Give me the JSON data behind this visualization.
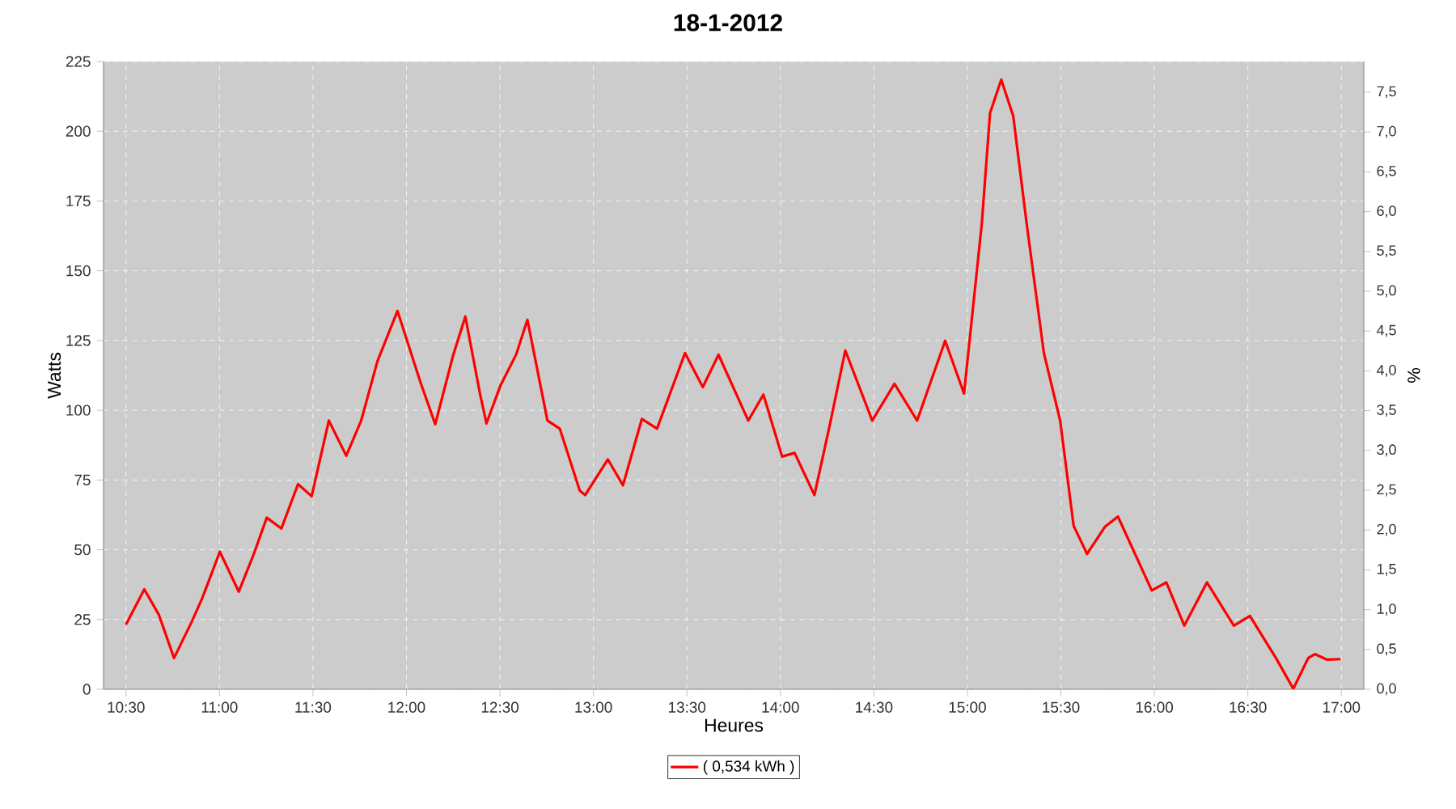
{
  "chart_data": {
    "type": "line",
    "title": "18-1-2012",
    "xlabel": "Heures",
    "ylabel": "Watts",
    "y2label": "%",
    "xlim": [
      10.38,
      17.12
    ],
    "xticks": [
      {
        "value": 10.5,
        "label": "10:30"
      },
      {
        "value": 11,
        "label": "11:00"
      },
      {
        "value": 11.5,
        "label": "11:30"
      },
      {
        "value": 12,
        "label": "12:00"
      },
      {
        "value": 12.5,
        "label": "12:30"
      },
      {
        "value": 13,
        "label": "13:00"
      },
      {
        "value": 13.5,
        "label": "13:30"
      },
      {
        "value": 14,
        "label": "14:00"
      },
      {
        "value": 14.5,
        "label": "14:30"
      },
      {
        "value": 15,
        "label": "15:00"
      },
      {
        "value": 15.5,
        "label": "15:30"
      },
      {
        "value": 16,
        "label": "16:00"
      },
      {
        "value": 16.5,
        "label": "16:30"
      },
      {
        "value": 17,
        "label": "17:00"
      }
    ],
    "ylim": [
      0,
      225
    ],
    "yticks": [
      0,
      25,
      50,
      75,
      100,
      125,
      150,
      175,
      200,
      225
    ],
    "y2lim": [
      0,
      7.886
    ],
    "y2ticks": [
      {
        "value": 0,
        "label": "0,0"
      },
      {
        "value": 0.5,
        "label": "0,5"
      },
      {
        "value": 1,
        "label": "1,0"
      },
      {
        "value": 1.5,
        "label": "1,5"
      },
      {
        "value": 2,
        "label": "2,0"
      },
      {
        "value": 2.5,
        "label": "2,5"
      },
      {
        "value": 3,
        "label": "3,0"
      },
      {
        "value": 3.5,
        "label": "3,5"
      },
      {
        "value": 4,
        "label": "4,0"
      },
      {
        "value": 4.5,
        "label": "4,5"
      },
      {
        "value": 5,
        "label": "5,0"
      },
      {
        "value": 5.5,
        "label": "5,5"
      },
      {
        "value": 6,
        "label": "6,0"
      },
      {
        "value": 6.5,
        "label": "6,5"
      },
      {
        "value": 7,
        "label": "7,0"
      },
      {
        "value": 7.5,
        "label": "7,5"
      }
    ],
    "grid": true,
    "legend": "bottom",
    "marker": "none",
    "line_style": "solid",
    "series": [
      {
        "name": "( 0,534 kWh )",
        "color": "#ff0000",
        "x": [
          10.5,
          10.598,
          10.676,
          10.757,
          10.849,
          10.907,
          11.002,
          11.103,
          11.181,
          11.253,
          11.331,
          11.42,
          11.493,
          11.585,
          11.678,
          11.758,
          11.845,
          11.952,
          12.076,
          12.154,
          12.249,
          12.315,
          12.393,
          12.428,
          12.503,
          12.587,
          12.647,
          12.754,
          12.82,
          12.927,
          12.956,
          13.077,
          13.158,
          13.259,
          13.34,
          13.49,
          13.585,
          13.669,
          13.828,
          13.909,
          14.009,
          14.076,
          14.182,
          14.263,
          14.347,
          14.491,
          14.61,
          14.731,
          14.881,
          14.982,
          15.077,
          15.121,
          15.181,
          15.245,
          15.317,
          15.409,
          15.496,
          15.568,
          15.64,
          15.735,
          15.805,
          15.986,
          16.064,
          16.16,
          16.281,
          16.425,
          16.511,
          16.65,
          16.743,
          16.823,
          16.858,
          16.924,
          16.996
        ],
        "values": [
          23.2,
          35.8,
          26.7,
          11.2,
          23.8,
          32.5,
          49.3,
          35.0,
          48.0,
          61.5,
          57.6,
          73.5,
          69.2,
          96.3,
          83.7,
          96.3,
          117.6,
          135.6,
          109.8,
          95.0,
          119.5,
          133.6,
          106.0,
          95.3,
          108.9,
          120.0,
          132.4,
          96.3,
          93.4,
          71.2,
          69.6,
          82.4,
          73.1,
          96.9,
          93.4,
          120.5,
          108.3,
          119.9,
          96.3,
          105.6,
          83.4,
          84.7,
          69.6,
          94.4,
          121.4,
          96.3,
          109.5,
          96.3,
          124.9,
          106.0,
          166.9,
          206.5,
          218.5,
          205.5,
          166.9,
          120.5,
          96.3,
          58.6,
          48.5,
          58.2,
          61.9,
          35.4,
          38.3,
          22.8,
          38.3,
          22.8,
          26.3,
          11.2,
          0.2,
          11.2,
          12.6,
          10.6,
          10.8
        ]
      }
    ]
  }
}
